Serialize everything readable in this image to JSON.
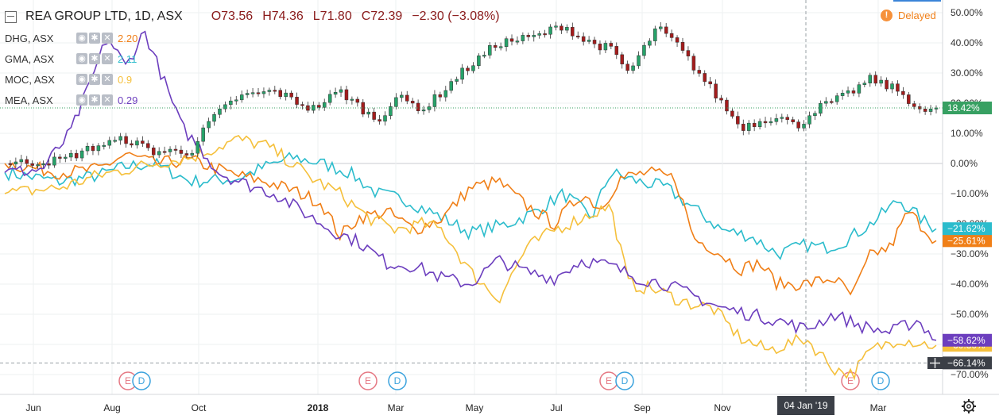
{
  "header": {
    "collapse_icon": "minus-square-icon",
    "symbol": "REA GROUP LTD, 1D, ASX",
    "dropdown_icon": "chevron-down-icon",
    "open": "O73.56",
    "high": "H74.36",
    "low": "L71.80",
    "close": "C72.39",
    "change": "−2.30 (−3.08%)"
  },
  "status": {
    "label": "Delayed",
    "icon": "exclamation-circle-icon"
  },
  "compare_legend": [
    {
      "label": "DHG, ASX",
      "value": "2.20",
      "color": "#f07f17"
    },
    {
      "label": "GMA, ASX",
      "value": "2.11",
      "color": "#2bbccc"
    },
    {
      "label": "MOC, ASX",
      "value": "0.9​",
      "color": "#f5c03c"
    },
    {
      "label": "MEA, ASX",
      "value": "0.29",
      "color": "#6c3ebe"
    }
  ],
  "legend_icons": [
    "eye-icon",
    "gear-icon",
    "close-icon"
  ],
  "corner_icon": "gear-icon",
  "chart_data": {
    "type": "line",
    "title": "REA GROUP LTD, 1D, ASX",
    "x_axis_ticks": [
      "Jun",
      "Aug",
      "Oct",
      "2018",
      "Mar",
      "May",
      "Jul",
      "Sep",
      "Nov",
      "Mar"
    ],
    "crosshair_label": "04 Jan '19",
    "y_axis": {
      "unit": "%",
      "ticks": [
        "50.00%",
        "40.00%",
        "30.00%",
        "20.00%",
        "10.00%",
        "0.00%",
        "−10.00%",
        "−20.00%",
        "−30.00%",
        "−40.00%",
        "−50.00%",
        "−60.00%",
        "−70.00%"
      ],
      "ylim": [
        -75,
        52
      ]
    },
    "price_line": {
      "label": "18.42%",
      "value": 18.42,
      "color": "#37a062"
    },
    "crosshair_value": {
      "label": "−66.14%",
      "value": -66.14
    },
    "grid": true,
    "events": [
      {
        "kind": "E",
        "color": "#e57782",
        "x_position": "Aug"
      },
      {
        "kind": "D",
        "color": "#3aa2dd",
        "x_position": "Aug"
      },
      {
        "kind": "E",
        "color": "#e57782",
        "x_position": "Feb 2018"
      },
      {
        "kind": "D",
        "color": "#3aa2dd",
        "x_position": "Mar 2018"
      },
      {
        "kind": "E",
        "color": "#e57782",
        "x_position": "Aug 2018"
      },
      {
        "kind": "D",
        "color": "#3aa2dd",
        "x_position": "Aug 2018"
      },
      {
        "kind": "E",
        "color": "#e57782",
        "x_position": "Feb 2019"
      },
      {
        "kind": "D",
        "color": "#3aa2dd",
        "x_position": "Feb 2019"
      }
    ],
    "candles": {
      "name": "REA GROUP LTD",
      "x": [
        0,
        0.06,
        0.1,
        0.13,
        0.16,
        0.2,
        0.22,
        0.25,
        0.29,
        0.33,
        0.36,
        0.4,
        0.42,
        0.45,
        0.49,
        0.53,
        0.57,
        0.6,
        0.62,
        0.65,
        0.67,
        0.7,
        0.72,
        0.75,
        0.79,
        0.83,
        0.85,
        0.87,
        0.9,
        0.93,
        0.96,
        0.99,
        1.0
      ],
      "values": [
        0,
        1,
        6,
        8,
        4,
        4,
        14,
        22,
        24,
        18,
        24,
        14,
        22,
        18,
        30,
        40,
        42,
        46,
        41,
        38,
        30,
        45,
        40,
        28,
        12,
        16,
        12,
        18,
        22,
        28,
        24,
        16,
        18.42
      ]
    },
    "series": [
      {
        "name": "DHG, ASX",
        "last_label": "−25.61%",
        "color": "#f07f17",
        "x": [
          0,
          0.06,
          0.1,
          0.13,
          0.16,
          0.2,
          0.25,
          0.28,
          0.31,
          0.34,
          0.36,
          0.38,
          0.41,
          0.44,
          0.47,
          0.5,
          0.53,
          0.56,
          0.59,
          0.62,
          0.64,
          0.66,
          0.69,
          0.72,
          0.74,
          0.76,
          0.79,
          0.81,
          0.83,
          0.86,
          0.89,
          0.91,
          0.93,
          0.95,
          0.97,
          1.0
        ],
        "values": [
          0,
          -3,
          -2,
          3,
          0,
          1,
          -4,
          -6,
          -9,
          -13,
          -24,
          -18,
          -16,
          -22,
          -18,
          -8,
          -6,
          -14,
          -20,
          -10,
          -15,
          -5,
          -3,
          -5,
          -25,
          -28,
          -35,
          -33,
          -40,
          -40,
          -38,
          -44,
          -30,
          -28,
          -16,
          -25.61
        ]
      },
      {
        "name": "GMA, ASX",
        "last_label": "−21.62%",
        "color": "#2bbccc",
        "x": [
          0,
          0.06,
          0.1,
          0.13,
          0.16,
          0.2,
          0.25,
          0.28,
          0.31,
          0.34,
          0.37,
          0.4,
          0.43,
          0.47,
          0.5,
          0.54,
          0.57,
          0.6,
          0.63,
          0.65,
          0.68,
          0.71,
          0.74,
          0.77,
          0.8,
          0.83,
          0.86,
          0.88,
          0.9,
          0.93,
          0.96,
          0.99,
          1.0
        ],
        "values": [
          -3,
          -6,
          -4,
          -1,
          0,
          -6,
          -5,
          -1,
          2,
          0,
          -3,
          -10,
          -12,
          -18,
          -23,
          -20,
          -16,
          -10,
          -18,
          -3,
          -6,
          -8,
          -15,
          -22,
          -24,
          -30,
          -27,
          -28,
          -26,
          -20,
          -12,
          -20,
          -21.62
        ]
      },
      {
        "name": "MOC, ASX",
        "last_label": "−60.30%",
        "color": "#f5c03c",
        "x": [
          0,
          0.06,
          0.1,
          0.13,
          0.16,
          0.2,
          0.25,
          0.28,
          0.3,
          0.33,
          0.36,
          0.39,
          0.42,
          0.45,
          0.47,
          0.5,
          0.53,
          0.56,
          0.59,
          0.62,
          0.65,
          0.67,
          0.7,
          0.73,
          0.76,
          0.79,
          0.82,
          0.84,
          0.86,
          0.89,
          0.91,
          0.93,
          0.96,
          0.99,
          1.0
        ],
        "values": [
          -10,
          -8,
          -4,
          -2,
          0,
          2,
          8,
          6,
          2,
          -5,
          -10,
          -18,
          -22,
          -20,
          -22,
          -36,
          -45,
          -28,
          -22,
          -18,
          -14,
          -40,
          -42,
          -46,
          -48,
          -58,
          -62,
          -60,
          -58,
          -68,
          -70,
          -62,
          -58,
          -60,
          -60.3
        ]
      },
      {
        "name": "MEA, ASX",
        "last_label": "−58.62%",
        "color": "#6c3ebe",
        "x": [
          0,
          0.04,
          0.07,
          0.09,
          0.11,
          0.13,
          0.15,
          0.17,
          0.19,
          0.21,
          0.23,
          0.26,
          0.29,
          0.32,
          0.35,
          0.38,
          0.41,
          0.44,
          0.47,
          0.5,
          0.53,
          0.56,
          0.59,
          0.62,
          0.65,
          0.68,
          0.71,
          0.74,
          0.77,
          0.8,
          0.83,
          0.86,
          0.89,
          0.92,
          0.95,
          0.98,
          1.0
        ],
        "values": [
          -3,
          -2,
          10,
          25,
          42,
          32,
          44,
          28,
          12,
          5,
          -3,
          -7,
          -10,
          -16,
          -22,
          -26,
          -33,
          -34,
          -38,
          -40,
          -32,
          -36,
          -38,
          -32,
          -34,
          -38,
          -40,
          -44,
          -48,
          -50,
          -52,
          -55,
          -50,
          -54,
          -56,
          -52,
          -58.62
        ]
      }
    ]
  }
}
